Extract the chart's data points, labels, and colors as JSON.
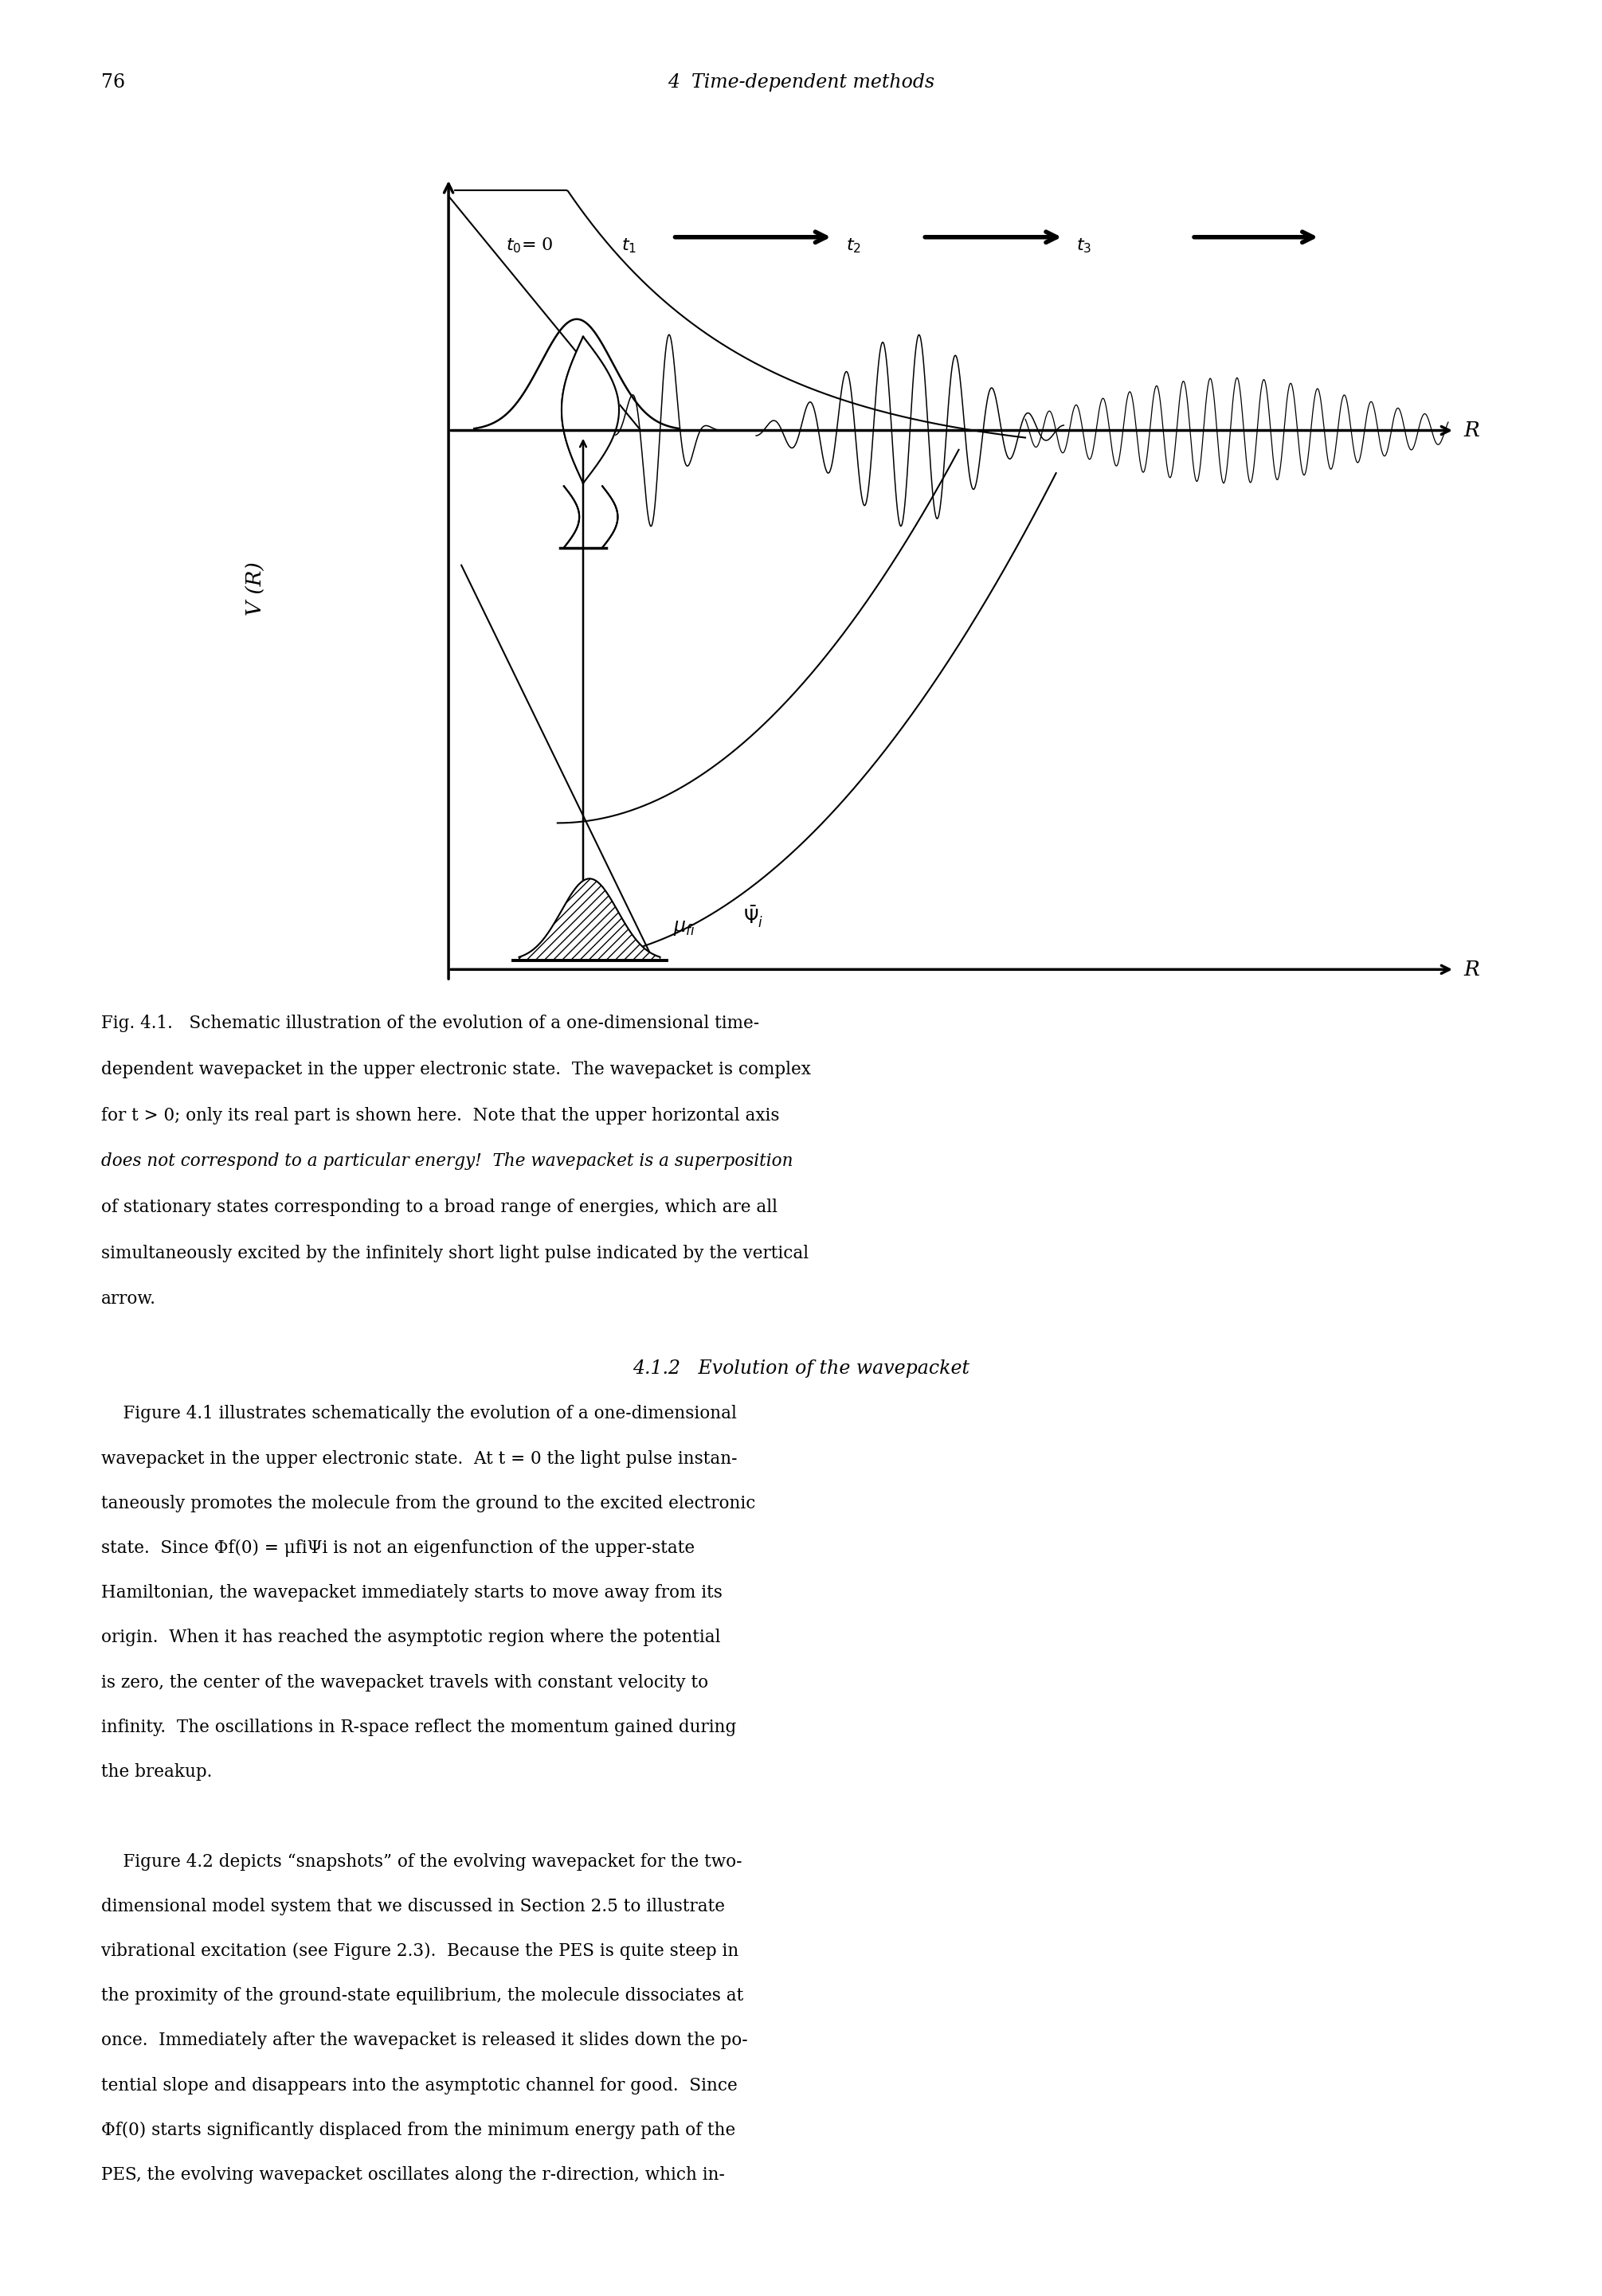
{
  "page_number": "76",
  "header_text": "4  Time-dependent methods",
  "background_color": "#ffffff",
  "line_color": "#000000",
  "fig_width": 20.11,
  "fig_height": 28.83,
  "caption_lines_normal": [
    "Fig. 4.1.   Schematic illustration of the evolution of a one-dimensional time-",
    "dependent wavepacket in the upper electronic state.  The wavepacket is complex",
    "for t > 0; only its real part is shown here.  Note that the upper horizontal axis"
  ],
  "caption_lines_italic": [
    "does not correspond to a particular energy!",
    " The wavepacket is a superposition"
  ],
  "caption_lines_normal2": [
    "of stationary states corresponding to a broad range of energies, which are all",
    "simultaneously excited by the infinitely short light pulse indicated by the vertical",
    "arrow."
  ],
  "body_para1": [
    "    Figure 4.1 illustrates schematically the evolution of a one-dimensional",
    "wavepacket in the upper electronic state.  At t = 0 the light pulse instan-",
    "taneously promotes the molecule from the ground to the excited electronic",
    "state.  Since Φf(0) = μfiΨi is not an eigenfunction of the upper-state",
    "Hamiltonian, the wavepacket immediately starts to move away from its",
    "origin.  When it has reached the asymptotic region where the potential",
    "is zero, the center of the wavepacket travels with constant velocity to",
    "infinity.  The oscillations in R-space reflect the momentum gained during",
    "the breakup."
  ],
  "body_para2": [
    "    Figure 4.2 depicts “snapshots” of the evolving wavepacket for the two-",
    "dimensional model system that we discussed in Section 2.5 to illustrate",
    "vibrational excitation (see Figure 2.3).  Because the PES is quite steep in",
    "the proximity of the ground-state equilibrium, the molecule dissociates at",
    "once.  Immediately after the wavepacket is released it slides down the po-",
    "tential slope and disappears into the asymptotic channel for good.  Since",
    "Φf(0) starts significantly displaced from the minimum energy path of the",
    "PES, the evolving wavepacket oscillates along the r-direction, which in-"
  ]
}
